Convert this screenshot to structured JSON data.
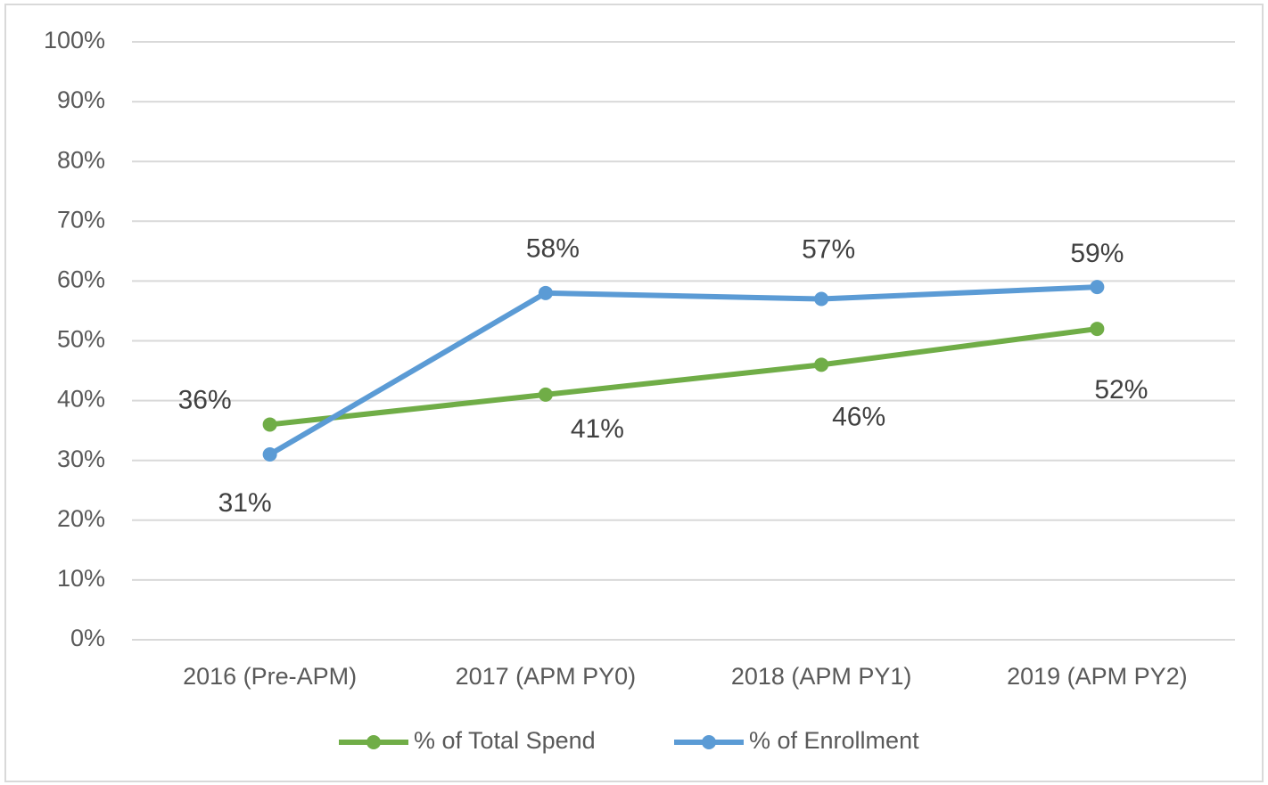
{
  "chart_data": {
    "type": "line",
    "categories": [
      "2016 (Pre-APM)",
      "2017 (APM PY0)",
      "2018 (APM PY1)",
      "2019 (APM PY2)"
    ],
    "series": [
      {
        "name": "% of Total Spend",
        "color": "#70ad47",
        "values": [
          36,
          41,
          46,
          52
        ],
        "value_labels": [
          "36%",
          "41%",
          "46%",
          "52%"
        ]
      },
      {
        "name": "% of Enrollment",
        "color": "#5b9bd5",
        "values": [
          31,
          58,
          57,
          59
        ],
        "value_labels": [
          "31%",
          "58%",
          "57%",
          "59%"
        ]
      }
    ],
    "ylim": [
      0,
      100
    ],
    "yticks": [
      {
        "value": 0,
        "label": "0%"
      },
      {
        "value": 10,
        "label": "10%"
      },
      {
        "value": 20,
        "label": "20%"
      },
      {
        "value": 30,
        "label": "30%"
      },
      {
        "value": 40,
        "label": "40%"
      },
      {
        "value": 50,
        "label": "50%"
      },
      {
        "value": 60,
        "label": "60%"
      },
      {
        "value": 70,
        "label": "70%"
      },
      {
        "value": 80,
        "label": "80%"
      },
      {
        "value": 90,
        "label": "90%"
      },
      {
        "value": 100,
        "label": "100%"
      }
    ],
    "grid": true,
    "legend": "bottom"
  }
}
